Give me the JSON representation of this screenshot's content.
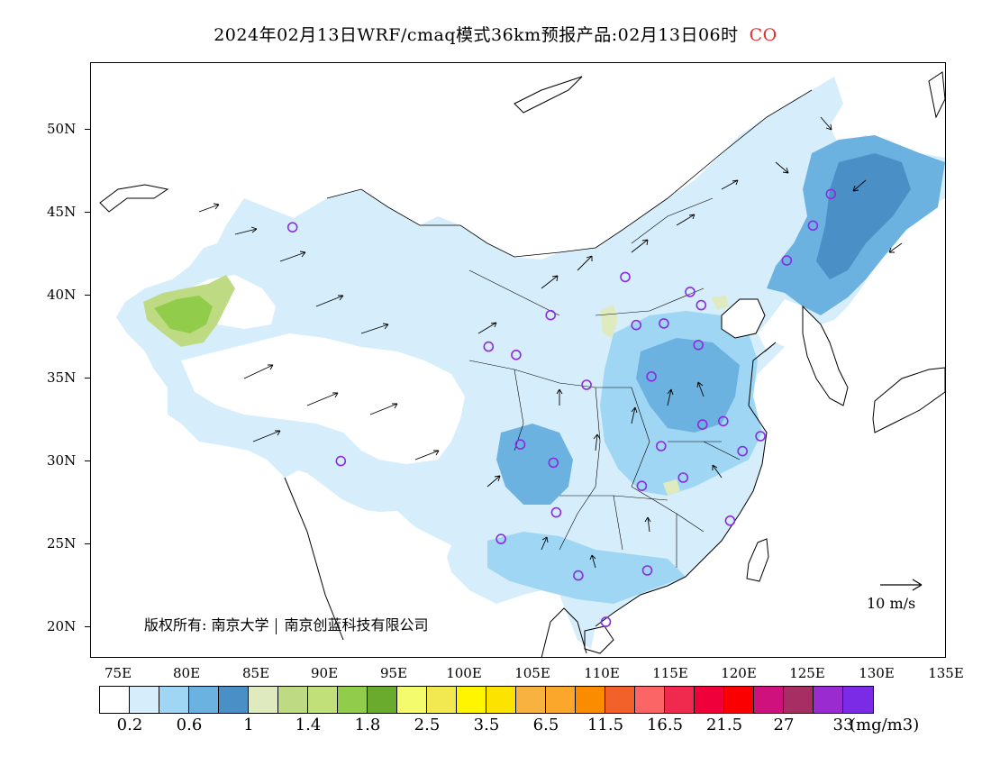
{
  "title": {
    "main": "2024年02月13日WRF/cmaq模式36km预报产品:02月13日06时",
    "species": "CO",
    "species_color": "#e03030"
  },
  "axes": {
    "lat_labels": [
      "50N",
      "45N",
      "40N",
      "35N",
      "30N",
      "25N",
      "20N"
    ],
    "lon_labels": [
      "75E",
      "80E",
      "85E",
      "90E",
      "95E",
      "100E",
      "105E",
      "110E",
      "115E",
      "120E",
      "125E",
      "130E",
      "135E"
    ]
  },
  "copyright": {
    "left": "版权所有: 南京大学",
    "right": "南京创蓝科技有限公司"
  },
  "reference_vector": {
    "label": "10  m/s"
  },
  "legend": {
    "colors": [
      "#ffffff",
      "#d6eefb",
      "#9ed6f4",
      "#6cb2e0",
      "#4a8fc6",
      "#dfebbf",
      "#bedb84",
      "#c1e07a",
      "#91cd4b",
      "#6aab2e",
      "#f4fb6c",
      "#f2e84f",
      "#fff500",
      "#fde400",
      "#f7b23f",
      "#fba72b",
      "#fb8c00",
      "#f2612a",
      "#fb6565",
      "#f02a4e",
      "#f0003a",
      "#fb0000",
      "#ce117c",
      "#a72e62",
      "#9a2bd0",
      "#7b2ae6"
    ],
    "labels": [
      "0.2",
      "0.6",
      "1",
      "1.4",
      "1.8",
      "2.5",
      "3.5",
      "6.5",
      "11.5",
      "16.5",
      "21.5",
      "27",
      "33"
    ],
    "unit": "(mg/m3)"
  },
  "stations": [
    {
      "lon": 87.6,
      "lat": 43.8
    },
    {
      "lon": 91.1,
      "lat": 29.7
    },
    {
      "lon": 101.8,
      "lat": 36.6
    },
    {
      "lon": 103.8,
      "lat": 36.1
    },
    {
      "lon": 106.3,
      "lat": 38.5
    },
    {
      "lon": 111.7,
      "lat": 40.8
    },
    {
      "lon": 112.5,
      "lat": 37.9
    },
    {
      "lon": 114.5,
      "lat": 38.0
    },
    {
      "lon": 116.4,
      "lat": 39.9
    },
    {
      "lon": 117.2,
      "lat": 39.1
    },
    {
      "lon": 117.0,
      "lat": 36.7
    },
    {
      "lon": 113.6,
      "lat": 34.8
    },
    {
      "lon": 108.9,
      "lat": 34.3
    },
    {
      "lon": 104.1,
      "lat": 30.7
    },
    {
      "lon": 106.5,
      "lat": 29.6
    },
    {
      "lon": 106.7,
      "lat": 26.6
    },
    {
      "lon": 102.7,
      "lat": 25.0
    },
    {
      "lon": 108.3,
      "lat": 22.8
    },
    {
      "lon": 113.3,
      "lat": 23.1
    },
    {
      "lon": 110.3,
      "lat": 20.0
    },
    {
      "lon": 112.9,
      "lat": 28.2
    },
    {
      "lon": 114.3,
      "lat": 30.6
    },
    {
      "lon": 115.9,
      "lat": 28.7
    },
    {
      "lon": 117.3,
      "lat": 31.9
    },
    {
      "lon": 118.8,
      "lat": 32.1
    },
    {
      "lon": 121.5,
      "lat": 31.2
    },
    {
      "lon": 120.2,
      "lat": 30.3
    },
    {
      "lon": 119.3,
      "lat": 26.1
    },
    {
      "lon": 123.4,
      "lat": 41.8
    },
    {
      "lon": 125.3,
      "lat": 43.9
    },
    {
      "lon": 126.6,
      "lat": 45.8
    }
  ]
}
